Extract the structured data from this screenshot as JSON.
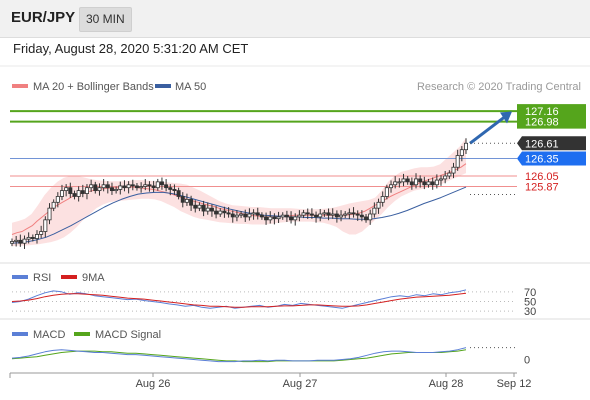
{
  "header": {
    "symbol": "EUR/JPY",
    "timeframe": "30 MIN",
    "datetime": "Friday, August 28, 2020 5:31:20 AM CET"
  },
  "colors": {
    "price": "#333333",
    "ma20": "#f08080",
    "bollinger_fill": "#fbdcdc",
    "ma50": "#3a5fa0",
    "level_green": "#55a51c",
    "level_blue": "#7294d6",
    "level_red": "#f08f8f",
    "arrow": "#2f67b0",
    "rsi": "#5b7fd6",
    "rsi_ma": "#d42020",
    "macd": "#5b7fd6",
    "macd_signal": "#55a51c",
    "tag_dark": "#333333",
    "tag_blue": "#1e6ef0",
    "tag_green": "#55a51c",
    "red_text": "#d42020"
  },
  "chart_data": [
    {
      "type": "candlestick",
      "legend": [
        {
          "label": "MA 20 + Bollinger Bands",
          "color": "#f08080"
        },
        {
          "label": "MA 50",
          "color": "#3a5fa0"
        }
      ],
      "legend_placement": "top-left",
      "watermark": "Research © 2020 Trading Central",
      "ylim": [
        124.75,
        127.35
      ],
      "x_ticks": [
        "Aug 26",
        "Aug 27",
        "Aug 28",
        "Sep 12"
      ],
      "current_price": "126.61",
      "levels": [
        {
          "value": 127.16,
          "label": "127.16",
          "style": "green-line",
          "tag": "green"
        },
        {
          "value": 126.98,
          "label": "126.98",
          "style": "green-line",
          "tag": "green"
        },
        {
          "value": 126.35,
          "label": "126.35",
          "style": "blue-line",
          "tag": "blue"
        },
        {
          "value": 126.05,
          "label": "126.05",
          "style": "red-line",
          "tag": "red-text"
        },
        {
          "value": 125.87,
          "label": "125.87",
          "style": "red-line",
          "tag": "red-text"
        }
      ],
      "close": [
        124.93,
        124.95,
        124.9,
        124.97,
        125.0,
        124.98,
        125.05,
        125.1,
        125.3,
        125.5,
        125.6,
        125.7,
        125.8,
        125.85,
        125.75,
        125.7,
        125.8,
        125.75,
        125.85,
        125.9,
        125.8,
        125.85,
        125.9,
        125.85,
        125.8,
        125.82,
        125.88,
        125.85,
        125.9,
        125.88,
        125.85,
        125.87,
        125.9,
        125.88,
        125.85,
        125.95,
        125.9,
        125.85,
        125.82,
        125.8,
        125.7,
        125.6,
        125.65,
        125.55,
        125.5,
        125.55,
        125.45,
        125.5,
        125.45,
        125.4,
        125.45,
        125.42,
        125.4,
        125.35,
        125.38,
        125.4,
        125.35,
        125.4,
        125.42,
        125.38,
        125.35,
        125.3,
        125.35,
        125.32,
        125.35,
        125.38,
        125.35,
        125.3,
        125.35,
        125.38,
        125.42,
        125.4,
        125.38,
        125.35,
        125.4,
        125.42,
        125.38,
        125.4,
        125.35,
        125.38,
        125.4,
        125.42,
        125.4,
        125.38,
        125.35,
        125.3,
        125.4,
        125.5,
        125.6,
        125.7,
        125.85,
        125.9,
        125.95,
        125.95,
        126.0,
        125.95,
        125.9,
        126.0,
        125.95,
        125.9,
        125.95,
        125.9,
        125.98,
        126.0,
        126.05,
        126.1,
        126.2,
        126.4,
        126.5,
        126.61
      ],
      "ma20": [
        125.05,
        125.08,
        125.1,
        125.15,
        125.2,
        125.28,
        125.35,
        125.42,
        125.5,
        125.55,
        125.6,
        125.65,
        125.7,
        125.73,
        125.76,
        125.78,
        125.8,
        125.82,
        125.83,
        125.84,
        125.85,
        125.85,
        125.86,
        125.86,
        125.86,
        125.85,
        125.84,
        125.83,
        125.82,
        125.8,
        125.78,
        125.76,
        125.73,
        125.7,
        125.67,
        125.64,
        125.62,
        125.6,
        125.57,
        125.55,
        125.53,
        125.5,
        125.48,
        125.46,
        125.44,
        125.42,
        125.4,
        125.38,
        125.37,
        125.36,
        125.35,
        125.35,
        125.35,
        125.35,
        125.36,
        125.37,
        125.38,
        125.38,
        125.38,
        125.38,
        125.38,
        125.38,
        125.38,
        125.38,
        125.38,
        125.38,
        125.38,
        125.39,
        125.4,
        125.42,
        125.45,
        125.5,
        125.55,
        125.6,
        125.65,
        125.7,
        125.74,
        125.78,
        125.82,
        125.86,
        125.9,
        125.94,
        125.97,
        126.0,
        126.03,
        126.06,
        126.09,
        126.12,
        126.16,
        126.2,
        126.26
      ],
      "bb_upper": [
        125.25,
        125.28,
        125.32,
        125.4,
        125.55,
        125.72,
        125.85,
        125.95,
        126.02,
        126.05,
        126.05,
        126.03,
        126.0,
        125.98,
        125.97,
        125.96,
        125.96,
        125.96,
        125.97,
        125.98,
        125.98,
        125.97,
        125.96,
        125.95,
        125.94,
        125.93,
        125.92,
        125.9,
        125.85,
        125.8,
        125.74,
        125.68,
        125.62,
        125.58,
        125.55,
        125.54,
        125.53,
        125.52,
        125.52,
        125.51,
        125.5,
        125.5,
        125.5,
        125.5,
        125.49,
        125.48,
        125.48,
        125.48,
        125.49,
        125.5,
        125.52,
        125.55,
        125.58,
        125.6,
        125.62,
        125.64,
        125.68,
        125.8,
        125.95,
        126.05,
        126.12,
        126.15,
        126.18,
        126.2,
        126.2,
        126.21,
        126.25,
        126.35,
        126.45,
        126.55,
        126.7
      ],
      "bb_lower": [
        124.85,
        124.86,
        124.86,
        124.87,
        124.88,
        124.9,
        124.92,
        124.95,
        125.0,
        125.08,
        125.18,
        125.3,
        125.4,
        125.5,
        125.56,
        125.6,
        125.62,
        125.63,
        125.64,
        125.65,
        125.66,
        125.66,
        125.65,
        125.62,
        125.57,
        125.52,
        125.45,
        125.4,
        125.35,
        125.32,
        125.3,
        125.28,
        125.26,
        125.25,
        125.24,
        125.23,
        125.23,
        125.22,
        125.22,
        125.22,
        125.23,
        125.25,
        125.26,
        125.27,
        125.27,
        125.27,
        125.27,
        125.26,
        125.25,
        125.22,
        125.18,
        125.1,
        125.05,
        125.05,
        125.1,
        125.2,
        125.3,
        125.4,
        125.52,
        125.62,
        125.7,
        125.75,
        125.8,
        125.82,
        125.85,
        125.88,
        125.9,
        125.95,
        126.0,
        126.05,
        126.1
      ],
      "ma50": [
        124.9,
        124.91,
        124.93,
        124.96,
        125.0,
        125.06,
        125.13,
        125.2,
        125.28,
        125.36,
        125.44,
        125.52,
        125.59,
        125.65,
        125.7,
        125.74,
        125.76,
        125.77,
        125.77,
        125.75,
        125.72,
        125.68,
        125.64,
        125.6,
        125.56,
        125.52,
        125.48,
        125.45,
        125.42,
        125.4,
        125.38,
        125.37,
        125.36,
        125.35,
        125.35,
        125.34,
        125.34,
        125.33,
        125.33,
        125.32,
        125.32,
        125.31,
        125.31,
        125.32,
        125.34,
        125.37,
        125.41,
        125.46,
        125.52,
        125.58,
        125.63,
        125.68,
        125.74,
        125.8,
        125.86
      ]
    },
    {
      "type": "line",
      "legend": [
        {
          "label": "RSI",
          "color": "#5b7fd6"
        },
        {
          "label": "9MA",
          "color": "#d42020"
        }
      ],
      "ylim": [
        20,
        80
      ],
      "y_ticks": [
        "70",
        "50",
        "30"
      ],
      "series": [
        {
          "name": "RSI",
          "values": [
            48,
            50,
            55,
            62,
            68,
            72,
            70,
            65,
            68,
            66,
            62,
            60,
            58,
            56,
            54,
            55,
            52,
            50,
            48,
            45,
            43,
            40,
            42,
            38,
            36,
            38,
            40,
            36,
            38,
            40,
            42,
            38,
            40,
            44,
            42,
            46,
            44,
            42,
            40,
            38,
            36,
            40,
            44,
            48,
            52,
            56,
            60,
            62,
            60,
            64,
            62,
            66,
            64,
            68,
            70,
            74
          ]
        },
        {
          "name": "9MA",
          "values": [
            50,
            51,
            53,
            56,
            60,
            63,
            65,
            66,
            66,
            65,
            64,
            63,
            61,
            59,
            57,
            56,
            55,
            53,
            51,
            49,
            47,
            45,
            43,
            42,
            40,
            40,
            39,
            38,
            38,
            39,
            39,
            39,
            40,
            41,
            41,
            42,
            43,
            43,
            42,
            41,
            40,
            40,
            41,
            43,
            46,
            49,
            52,
            55,
            57,
            59,
            60,
            61,
            62,
            63,
            65,
            67
          ]
        }
      ]
    },
    {
      "type": "line",
      "legend": [
        {
          "label": "MACD",
          "color": "#5b7fd6"
        },
        {
          "label": "MACD Signal",
          "color": "#55a51c"
        }
      ],
      "ylim": [
        -0.15,
        0.25
      ],
      "y_ticks": [
        "0"
      ],
      "series": [
        {
          "name": "MACD",
          "values": [
            0.02,
            0.03,
            0.05,
            0.08,
            0.11,
            0.13,
            0.14,
            0.13,
            0.12,
            0.11,
            0.1,
            0.1,
            0.09,
            0.08,
            0.07,
            0.07,
            0.06,
            0.05,
            0.04,
            0.03,
            0.02,
            0.01,
            0.0,
            -0.01,
            -0.02,
            -0.03,
            -0.03,
            -0.03,
            -0.02,
            -0.02,
            -0.01,
            -0.02,
            -0.01,
            -0.01,
            -0.02,
            -0.02,
            -0.02,
            -0.01,
            -0.01,
            -0.01,
            0.0,
            0.01,
            0.03,
            0.06,
            0.09,
            0.11,
            0.12,
            0.12,
            0.11,
            0.1,
            0.1,
            0.1,
            0.11,
            0.12,
            0.14,
            0.17
          ]
        },
        {
          "name": "MACD Signal",
          "values": [
            0.01,
            0.02,
            0.03,
            0.04,
            0.06,
            0.08,
            0.1,
            0.11,
            0.12,
            0.12,
            0.12,
            0.11,
            0.11,
            0.1,
            0.09,
            0.09,
            0.08,
            0.07,
            0.06,
            0.05,
            0.04,
            0.03,
            0.02,
            0.01,
            0.0,
            -0.01,
            -0.02,
            -0.02,
            -0.03,
            -0.03,
            -0.03,
            -0.03,
            -0.02,
            -0.02,
            -0.02,
            -0.02,
            -0.02,
            -0.02,
            -0.02,
            -0.02,
            -0.01,
            0.0,
            0.01,
            0.02,
            0.04,
            0.06,
            0.08,
            0.09,
            0.1,
            0.1,
            0.1,
            0.1,
            0.1,
            0.11,
            0.12,
            0.14
          ]
        }
      ]
    }
  ]
}
